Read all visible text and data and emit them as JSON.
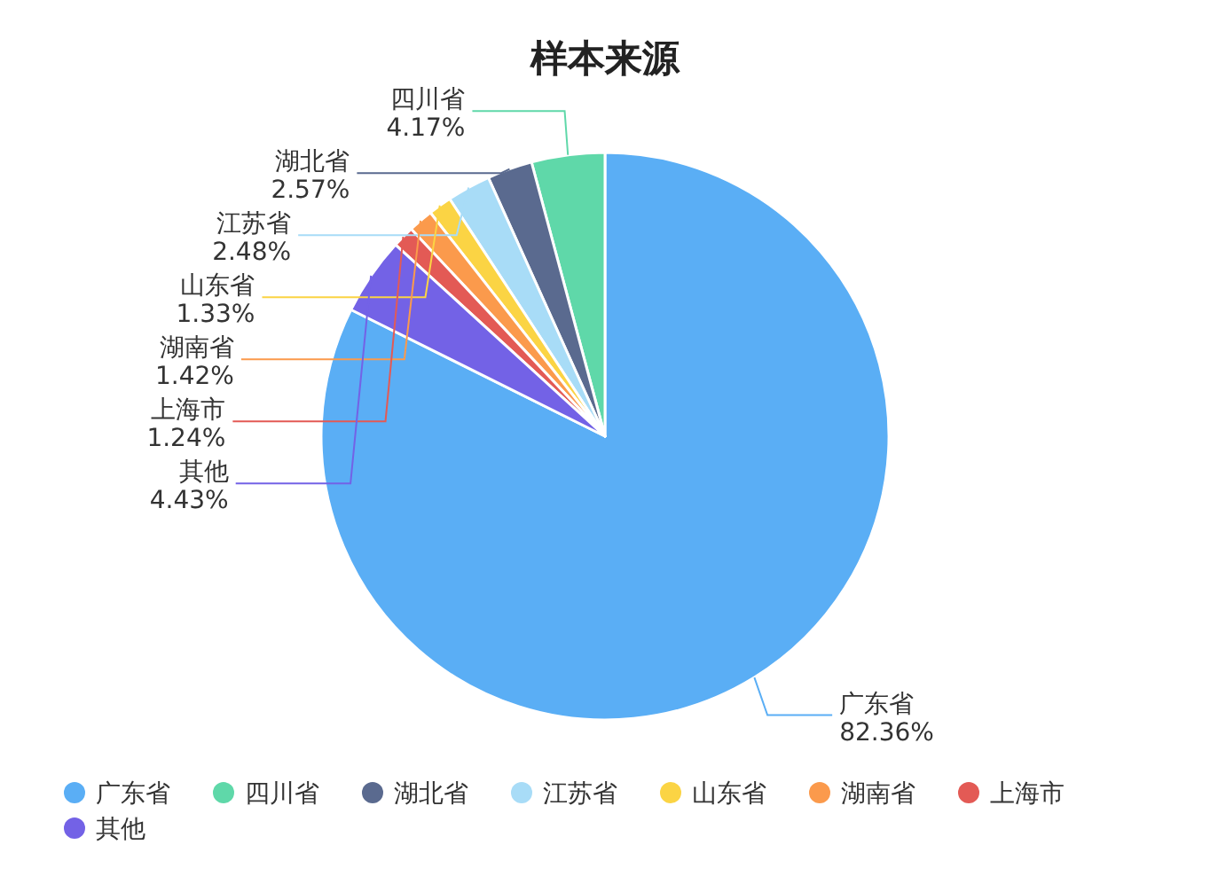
{
  "chart_data": {
    "type": "pie",
    "title": "样本来源",
    "categories": [
      "广东省",
      "四川省",
      "湖北省",
      "江苏省",
      "山东省",
      "湖南省",
      "上海市",
      "其他"
    ],
    "values": [
      82.36,
      4.17,
      2.57,
      2.48,
      1.33,
      1.42,
      1.24,
      4.43
    ],
    "value_labels": [
      "82.36%",
      "4.17%",
      "2.57%",
      "2.48%",
      "1.33%",
      "1.42%",
      "1.24%",
      "4.43%"
    ],
    "colors": [
      "#5aaef5",
      "#5fd8a9",
      "#5a6a8f",
      "#a8dcf7",
      "#fbd444",
      "#fb9a4c",
      "#e35a55",
      "#7362e6"
    ],
    "legend": "bottom"
  }
}
